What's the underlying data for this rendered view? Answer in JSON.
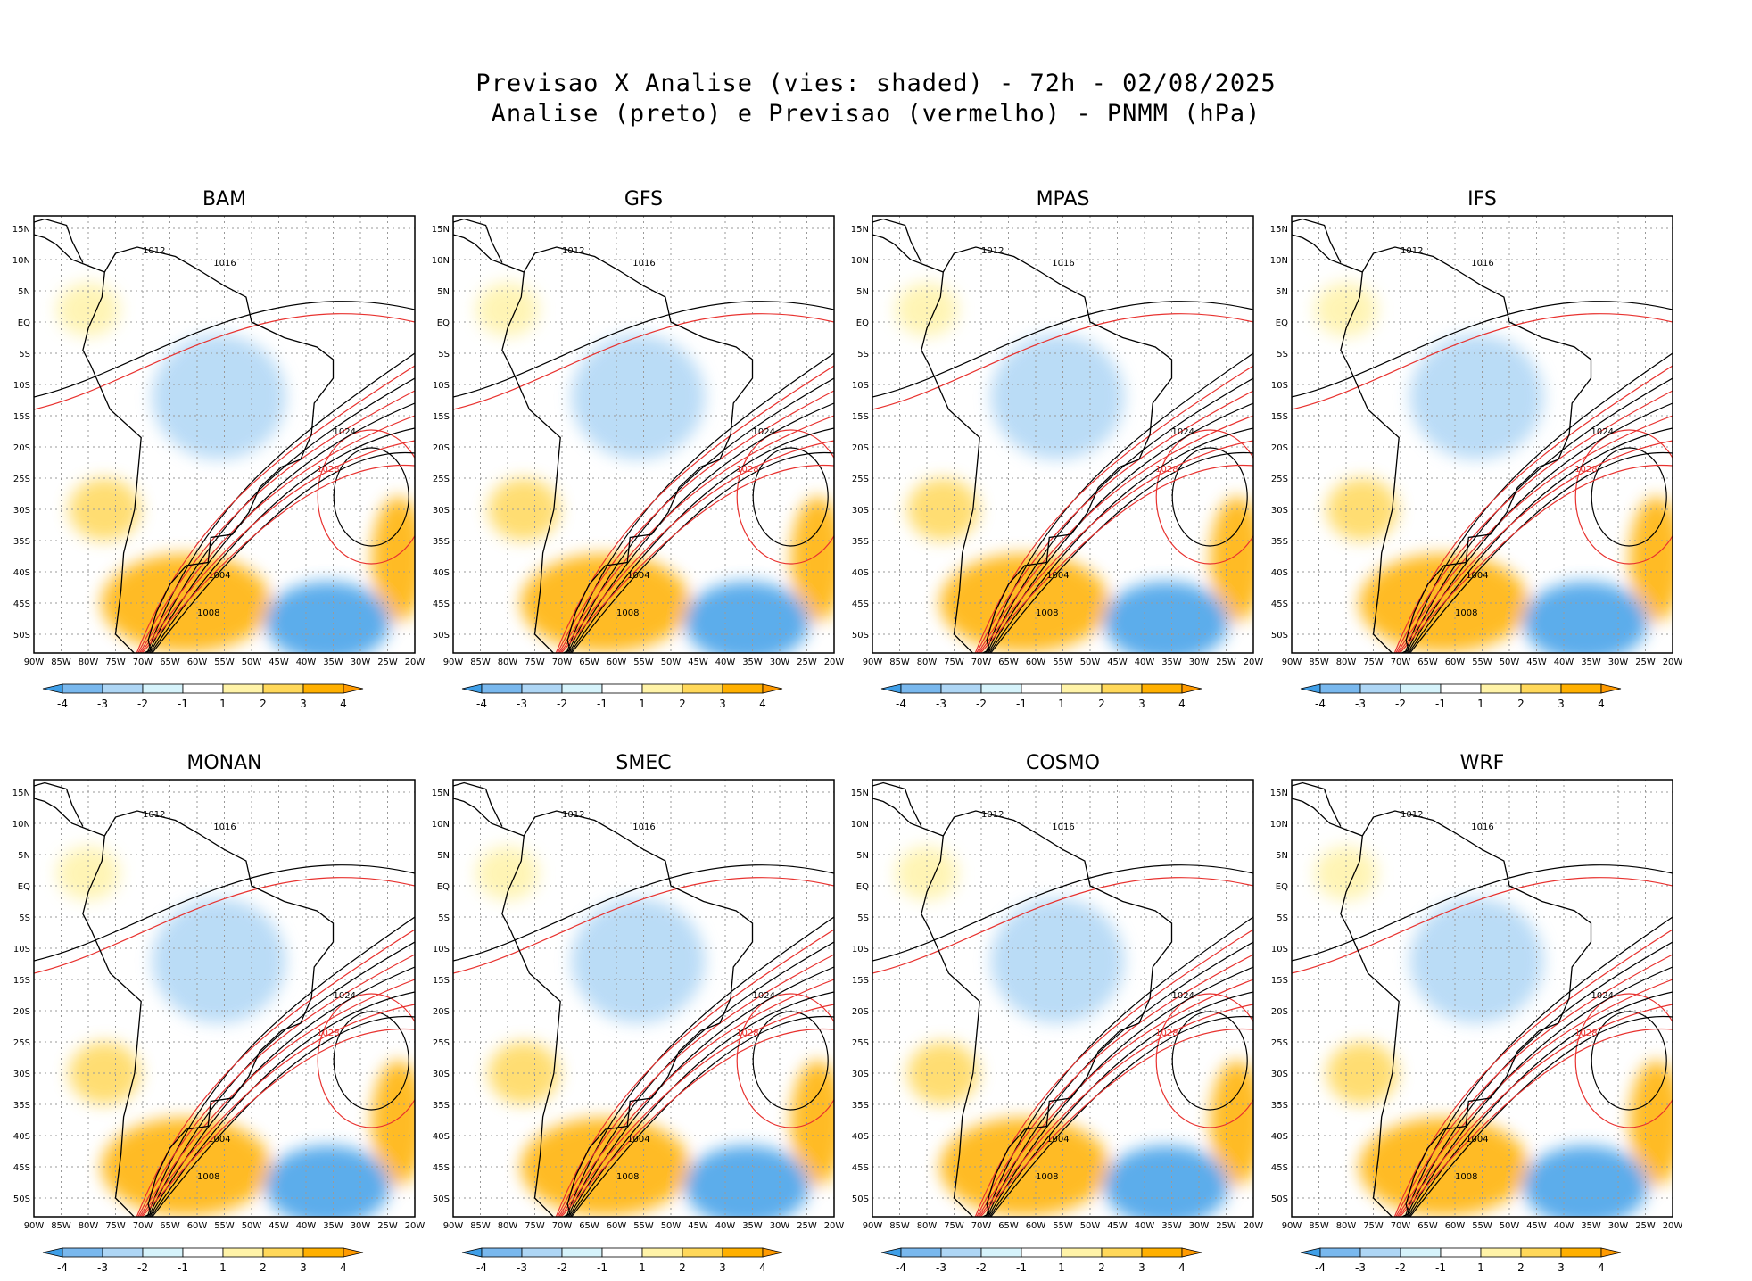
{
  "header": {
    "title_line1": "Previsao X Analise (vies: shaded) - 72h - 02/08/2025",
    "title_line2": "Analise (preto) e Previsao (vermelho) - PNMM (hPa)"
  },
  "axes": {
    "lat_labels": [
      "15N",
      "10N",
      "5N",
      "EQ",
      "5S",
      "10S",
      "15S",
      "20S",
      "25S",
      "30S",
      "35S",
      "40S",
      "45S",
      "50S"
    ],
    "lon_labels": [
      "90W",
      "85W",
      "80W",
      "75W",
      "70W",
      "65W",
      "60W",
      "55W",
      "50W",
      "45W",
      "40W",
      "35W",
      "30W",
      "25W",
      "20W"
    ]
  },
  "colorbar": {
    "labels": [
      "-4",
      "-3",
      "-2",
      "-1",
      "1",
      "2",
      "3",
      "4"
    ],
    "colors": [
      "#3f9fe8",
      "#79b8ee",
      "#aed6f5",
      "#d6f3fb",
      "#ffffff",
      "#fff3a8",
      "#ffd85a",
      "#ffb000",
      "#ff9a00"
    ]
  },
  "colors": {
    "analysis_contour": "#000000",
    "forecast_contour": "#e8322f",
    "coast": "#000000",
    "grid": "#9a9a9a"
  },
  "panels": [
    {
      "name": "BAM",
      "iso": [
        {
          "v": "1016"
        },
        {
          "v": "1012"
        },
        {
          "v": "1024"
        },
        {
          "v": "1028"
        },
        {
          "v": "1004"
        },
        {
          "v": "1008"
        }
      ]
    },
    {
      "name": "GFS",
      "iso": [
        {
          "v": "1016"
        },
        {
          "v": "1012"
        },
        {
          "v": "1024"
        },
        {
          "v": "1028"
        },
        {
          "v": "1004"
        },
        {
          "v": "1008"
        }
      ]
    },
    {
      "name": "MPAS",
      "iso": [
        {
          "v": "1016"
        },
        {
          "v": "1012"
        },
        {
          "v": "1024"
        },
        {
          "v": "1028"
        },
        {
          "v": "1004"
        },
        {
          "v": "1008"
        }
      ]
    },
    {
      "name": "IFS",
      "iso": [
        {
          "v": "1016"
        },
        {
          "v": "1012"
        },
        {
          "v": "1024"
        },
        {
          "v": "1028"
        },
        {
          "v": "1004"
        },
        {
          "v": "1008"
        }
      ]
    },
    {
      "name": "MONAN",
      "iso": [
        {
          "v": "1016"
        },
        {
          "v": "1012"
        },
        {
          "v": "1024"
        },
        {
          "v": "1028"
        },
        {
          "v": "1004"
        },
        {
          "v": "1008"
        }
      ]
    },
    {
      "name": "SMEC",
      "iso": [
        {
          "v": "1016"
        },
        {
          "v": "1012"
        },
        {
          "v": "1024"
        },
        {
          "v": "1028"
        },
        {
          "v": "1004"
        },
        {
          "v": "1008"
        }
      ]
    },
    {
      "name": "COSMO",
      "iso": [
        {
          "v": "1016"
        },
        {
          "v": "1012"
        },
        {
          "v": "1024"
        },
        {
          "v": "1028"
        },
        {
          "v": "1004"
        },
        {
          "v": "1008"
        }
      ]
    },
    {
      "name": "WRF",
      "iso": [
        {
          "v": "1016"
        },
        {
          "v": "1012"
        },
        {
          "v": "1024"
        },
        {
          "v": "1028"
        },
        {
          "v": "1004"
        },
        {
          "v": "1008"
        }
      ]
    }
  ]
}
